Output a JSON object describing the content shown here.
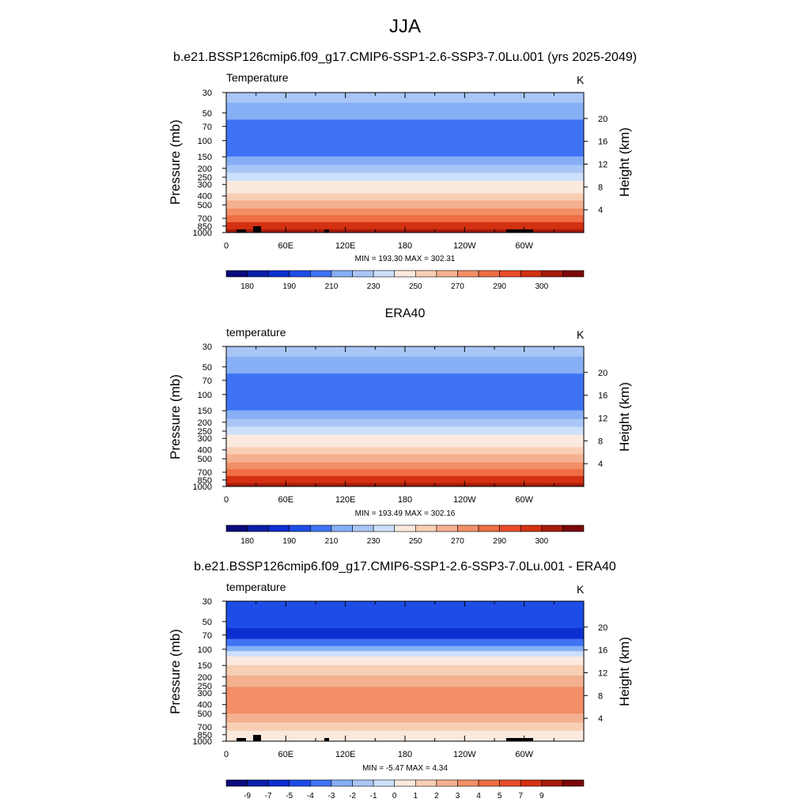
{
  "chart_data": {
    "type": "heatmap",
    "title": "JJA",
    "panels": [
      {
        "panel_title": "b.e21.BSSP126cmip6.f09_g17.CMIP6-SSP1-2.6-SSP3-7.0Lu.001 (yrs 2025-2049)",
        "variable": "Temperature",
        "units": "K",
        "ylabel_left": "Pressure (mb)",
        "ylabel_right": "Height (km)",
        "pressure_ticks": [
          "30",
          "50",
          "70",
          "100",
          "150",
          "200",
          "250",
          "300",
          "400",
          "500",
          "700",
          "850",
          "1000"
        ],
        "height_ticks": [
          "20",
          "16",
          "12",
          "8",
          "4"
        ],
        "lon_ticks": [
          "0",
          "60E",
          "120E",
          "180",
          "120W",
          "60W"
        ],
        "min_max_text": "MIN = 193.30  MAX = 302.31",
        "colorbar_labels": [
          "180",
          "190",
          "210",
          "230",
          "250",
          "270",
          "290",
          "300"
        ],
        "profile": [
          {
            "p": 30,
            "value": 222
          },
          {
            "p": 50,
            "value": 214
          },
          {
            "p": 70,
            "value": 206
          },
          {
            "p": 100,
            "value": 202
          },
          {
            "p": 130,
            "value": 208
          },
          {
            "p": 170,
            "value": 215
          },
          {
            "p": 200,
            "value": 222
          },
          {
            "p": 250,
            "value": 232
          },
          {
            "p": 300,
            "value": 241
          },
          {
            "p": 350,
            "value": 247
          },
          {
            "p": 400,
            "value": 254
          },
          {
            "p": 500,
            "value": 263
          },
          {
            "p": 600,
            "value": 272
          },
          {
            "p": 700,
            "value": 280
          },
          {
            "p": 850,
            "value": 290
          },
          {
            "p": 1000,
            "value": 298
          }
        ]
      },
      {
        "panel_title": "ERA40",
        "variable": "temperature",
        "units": "K",
        "ylabel_left": "Pressure (mb)",
        "ylabel_right": "Height (km)",
        "pressure_ticks": [
          "30",
          "50",
          "70",
          "100",
          "150",
          "200",
          "250",
          "300",
          "400",
          "500",
          "700",
          "850",
          "1000"
        ],
        "height_ticks": [
          "20",
          "16",
          "12",
          "8",
          "4"
        ],
        "lon_ticks": [
          "0",
          "60E",
          "120E",
          "180",
          "120W",
          "60W"
        ],
        "min_max_text": "MIN = 193.49  MAX = 302.16",
        "colorbar_labels": [
          "180",
          "190",
          "210",
          "230",
          "250",
          "270",
          "290",
          "300"
        ],
        "profile": [
          {
            "p": 30,
            "value": 222
          },
          {
            "p": 50,
            "value": 214
          },
          {
            "p": 70,
            "value": 208
          },
          {
            "p": 100,
            "value": 203
          },
          {
            "p": 130,
            "value": 208
          },
          {
            "p": 170,
            "value": 216
          },
          {
            "p": 200,
            "value": 223
          },
          {
            "p": 250,
            "value": 233
          },
          {
            "p": 300,
            "value": 242
          },
          {
            "p": 350,
            "value": 248
          },
          {
            "p": 400,
            "value": 254
          },
          {
            "p": 500,
            "value": 263
          },
          {
            "p": 600,
            "value": 272
          },
          {
            "p": 700,
            "value": 280
          },
          {
            "p": 850,
            "value": 290
          },
          {
            "p": 1000,
            "value": 297
          }
        ]
      },
      {
        "panel_title": "b.e21.BSSP126cmip6.f09_g17.CMIP6-SSP1-2.6-SSP3-7.0Lu.001 - ERA40",
        "variable": "temperature",
        "units": "K",
        "ylabel_left": "Pressure (mb)",
        "ylabel_right": "Height (km)",
        "pressure_ticks": [
          "30",
          "50",
          "70",
          "100",
          "150",
          "200",
          "250",
          "300",
          "400",
          "500",
          "700",
          "850",
          "1000"
        ],
        "height_ticks": [
          "20",
          "16",
          "12",
          "8",
          "4"
        ],
        "lon_ticks": [
          "0",
          "60E",
          "120E",
          "180",
          "120W",
          "60W"
        ],
        "min_max_text": "MIN =  -5.47  MAX =   4.34",
        "colorbar_labels": [
          "-9",
          "-7",
          "-5",
          "-4",
          "-3",
          "-2",
          "-1",
          "0",
          "1",
          "2",
          "3",
          "4",
          "5",
          "7",
          "9"
        ],
        "profile": [
          {
            "p": 30,
            "value": -4.5
          },
          {
            "p": 50,
            "value": -4.5
          },
          {
            "p": 70,
            "value": -5.2
          },
          {
            "p": 85,
            "value": -3.5
          },
          {
            "p": 100,
            "value": -2.5
          },
          {
            "p": 110,
            "value": -0.5
          },
          {
            "p": 130,
            "value": 0.5
          },
          {
            "p": 170,
            "value": 1.5
          },
          {
            "p": 220,
            "value": 2.5
          },
          {
            "p": 300,
            "value": 3.5
          },
          {
            "p": 450,
            "value": 3.5
          },
          {
            "p": 560,
            "value": 2.5
          },
          {
            "p": 700,
            "value": 1.5
          },
          {
            "p": 850,
            "value": 0.5
          },
          {
            "p": 1000,
            "value": 0.5
          }
        ]
      }
    ]
  },
  "colors": {
    "temperature_levels": [
      "#0a0a7d",
      "#0a1fa8",
      "#0d2ed0",
      "#1e4ce6",
      "#3f73f5",
      "#86aff6",
      "#a9c6f7",
      "#cce0fb",
      "#fbe9de",
      "#f8cfb5",
      "#f4b18f",
      "#f28f66",
      "#ee6d45",
      "#e84d28",
      "#d33112",
      "#a61b0c",
      "#7a0808"
    ],
    "difference_levels": [
      "#0a0a7d",
      "#0a1fa8",
      "#0d2ed0",
      "#1e4ce6",
      "#3f73f5",
      "#86aff6",
      "#a9c6f7",
      "#cce0fb",
      "#fbe9de",
      "#f8cfb5",
      "#f4b18f",
      "#f28f66",
      "#ee6d45",
      "#e84d28",
      "#d33112",
      "#a61b0c",
      "#7a0808"
    ],
    "topography": "#000000"
  }
}
